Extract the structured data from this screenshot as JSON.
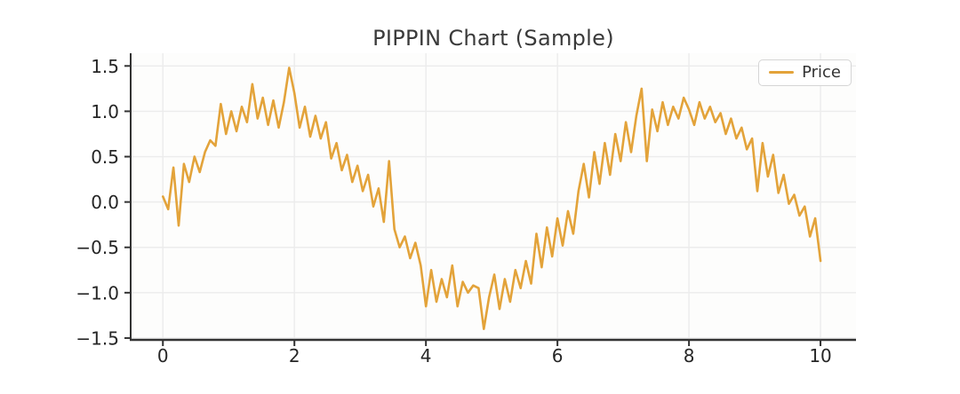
{
  "title": "PIPPIN Chart (Sample)",
  "legend": {
    "label": "Price"
  },
  "colors": {
    "line": "#E3A33A",
    "grid": "#ECECEC",
    "axis": "#333333",
    "tick_text": "#262626",
    "title_text": "#3A3A3A",
    "legend_border": "#D5D5D5",
    "background": "#FFFFFF",
    "plot_background": "#FDFDFC"
  },
  "chart_data": {
    "type": "line",
    "title": "PIPPIN Chart (Sample)",
    "xlabel": "",
    "ylabel": "",
    "xlim": [
      -0.49,
      10.54
    ],
    "ylim": [
      -1.52,
      1.64
    ],
    "x_ticks": [
      0,
      2,
      4,
      6,
      8,
      10
    ],
    "x_tick_labels": [
      "0",
      "2",
      "4",
      "6",
      "8",
      "10"
    ],
    "y_ticks": [
      -1.5,
      -1.0,
      -0.5,
      0.0,
      0.5,
      1.0,
      1.5
    ],
    "y_tick_labels": [
      "−1.5",
      "−1.0",
      "−0.5",
      "0.0",
      "0.5",
      "1.0",
      "1.5"
    ],
    "grid": true,
    "legend_position": "upper right",
    "series": [
      {
        "name": "Price",
        "color": "#E3A33A",
        "x": [
          0,
          0.08,
          0.16,
          0.24,
          0.32,
          0.4,
          0.48,
          0.56,
          0.64,
          0.72,
          0.8,
          0.88,
          0.96,
          1.04,
          1.12,
          1.2,
          1.28,
          1.36,
          1.44,
          1.52,
          1.6,
          1.68,
          1.76,
          1.84,
          1.92,
          2.0,
          2.08,
          2.16,
          2.24,
          2.32,
          2.4,
          2.48,
          2.56,
          2.64,
          2.72,
          2.8,
          2.88,
          2.96,
          3.04,
          3.12,
          3.2,
          3.28,
          3.36,
          3.44,
          3.52,
          3.6,
          3.68,
          3.76,
          3.84,
          3.92,
          4.0,
          4.08,
          4.16,
          4.24,
          4.32,
          4.4,
          4.48,
          4.56,
          4.64,
          4.72,
          4.8,
          4.88,
          4.96,
          5.04,
          5.12,
          5.2,
          5.28,
          5.36,
          5.44,
          5.52,
          5.6,
          5.68,
          5.76,
          5.84,
          5.92,
          6.0,
          6.08,
          6.16,
          6.24,
          6.32,
          6.4,
          6.48,
          6.56,
          6.64,
          6.72,
          6.8,
          6.88,
          6.96,
          7.04,
          7.12,
          7.2,
          7.28,
          7.36,
          7.44,
          7.52,
          7.6,
          7.68,
          7.76,
          7.84,
          7.92,
          8.0,
          8.08,
          8.16,
          8.24,
          8.32,
          8.4,
          8.48,
          8.56,
          8.64,
          8.72,
          8.8,
          8.88,
          8.96,
          9.04,
          9.12,
          9.2,
          9.28,
          9.36,
          9.44,
          9.52,
          9.6,
          9.68,
          9.76,
          9.84,
          9.92,
          10.0
        ],
        "y": [
          0.06,
          -0.08,
          0.38,
          -0.26,
          0.42,
          0.22,
          0.5,
          0.33,
          0.55,
          0.68,
          0.62,
          1.08,
          0.75,
          1.0,
          0.78,
          1.05,
          0.88,
          1.3,
          0.92,
          1.15,
          0.85,
          1.12,
          0.82,
          1.1,
          1.48,
          1.2,
          0.82,
          1.05,
          0.72,
          0.95,
          0.7,
          0.88,
          0.48,
          0.65,
          0.35,
          0.52,
          0.22,
          0.4,
          0.12,
          0.3,
          -0.05,
          0.15,
          -0.22,
          0.45,
          -0.3,
          -0.5,
          -0.38,
          -0.62,
          -0.45,
          -0.7,
          -1.15,
          -0.75,
          -1.1,
          -0.85,
          -1.05,
          -0.7,
          -1.15,
          -0.88,
          -1.0,
          -0.92,
          -0.95,
          -1.4,
          -1.05,
          -0.8,
          -1.18,
          -0.85,
          -1.1,
          -0.75,
          -0.95,
          -0.65,
          -0.9,
          -0.35,
          -0.72,
          -0.28,
          -0.6,
          -0.18,
          -0.48,
          -0.1,
          -0.35,
          0.12,
          0.42,
          0.05,
          0.55,
          0.2,
          0.65,
          0.3,
          0.75,
          0.45,
          0.88,
          0.55,
          0.95,
          1.25,
          0.45,
          1.02,
          0.78,
          1.1,
          0.85,
          1.05,
          0.92,
          1.15,
          1.02,
          0.85,
          1.1,
          0.92,
          1.05,
          0.88,
          0.98,
          0.75,
          0.92,
          0.7,
          0.82,
          0.58,
          0.7,
          0.12,
          0.65,
          0.28,
          0.52,
          0.1,
          0.3,
          -0.02,
          0.08,
          -0.15,
          -0.05,
          -0.38,
          -0.18,
          -0.65
        ]
      }
    ]
  }
}
